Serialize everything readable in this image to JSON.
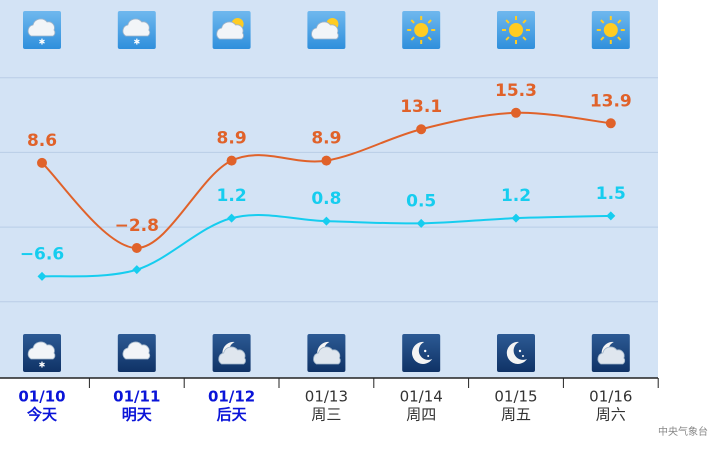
{
  "chart_data": {
    "type": "line",
    "categories": [
      "01/10",
      "01/11",
      "01/12",
      "01/13",
      "01/14",
      "01/15",
      "01/16"
    ],
    "days": [
      "今天",
      "明天",
      "后天",
      "周三",
      "周四",
      "周五",
      "周六"
    ],
    "series": [
      {
        "color": "#e0622a",
        "values": [
          8.6,
          -2.8,
          8.9,
          8.9,
          13.1,
          15.3,
          13.9
        ],
        "value_labels": [
          "8.6",
          "−2.8",
          "8.9",
          "8.9",
          "13.1",
          "15.3",
          "13.9"
        ]
      },
      {
        "color": "#16cdef",
        "values": [
          -6.6,
          -5.7,
          1.2,
          0.8,
          0.5,
          1.2,
          1.5
        ],
        "value_labels": [
          "−6.6",
          null,
          "1.2",
          "0.8",
          "0.5",
          "1.2",
          "1.5"
        ]
      }
    ],
    "ylim": [
      -20.2,
      30.4
    ],
    "yticks": [
      -10,
      0,
      10,
      20
    ],
    "grid": true,
    "source": "中央气象台"
  }
}
